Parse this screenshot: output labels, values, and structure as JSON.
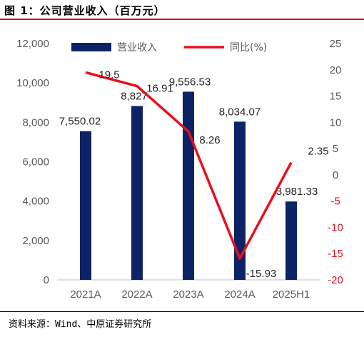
{
  "header": {
    "title": "图 1：公司营业收入（百万元）"
  },
  "footer": {
    "source": "资料来源：Wind、中原证券研究所"
  },
  "colors": {
    "bar": "#0d2366",
    "line": "#e8101c",
    "accent": "#c8102e",
    "negative_tick": "#d9121f"
  },
  "chart_data": {
    "type": "bar",
    "categories": [
      "2021A",
      "2022A",
      "2023A",
      "2024A",
      "2025H1"
    ],
    "series": [
      {
        "name": "营业收入",
        "type": "bar",
        "axis": "left",
        "values": [
          7550.02,
          8827,
          9556.53,
          8034.07,
          3981.33
        ],
        "labels": [
          "7,550.02",
          "8,827",
          "9,556.53",
          "8,034.07",
          "3,981.33"
        ]
      },
      {
        "name": "同比(%)",
        "type": "line",
        "axis": "right",
        "values": [
          19.5,
          16.91,
          8.26,
          -15.93,
          2.35
        ],
        "labels": [
          "19.5",
          "16.91",
          "8.26",
          "-15.93",
          "2.35"
        ]
      }
    ],
    "ylim_left": [
      0,
      12000
    ],
    "yticks_left": [
      "0",
      "2,000",
      "4,000",
      "6,000",
      "8,000",
      "10,000",
      "12,000"
    ],
    "ylim_right": [
      -20,
      25
    ],
    "yticks_right": [
      "-20",
      "-15",
      "-10",
      "-5",
      "0",
      "5",
      "10",
      "15",
      "20",
      "25"
    ],
    "legend_position": "top",
    "grid": false
  }
}
